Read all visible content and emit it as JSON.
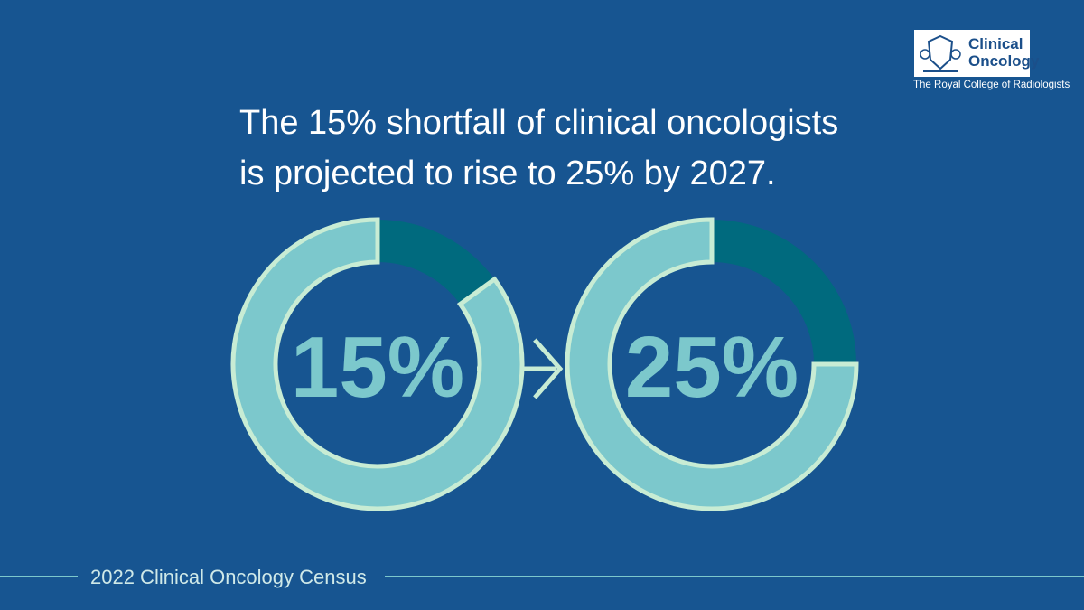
{
  "headline": [
    "The 15% shortfall of clinical oncologists",
    "is projected to rise to 25% by 2027."
  ],
  "logo": {
    "name": "Clinical Oncology",
    "organisation": "The Royal College of Radiologists"
  },
  "footer": "2022 Clinical Oncology Census",
  "chart_data": [
    {
      "type": "donut",
      "values": [
        15,
        85
      ],
      "value_labels": [
        "15%",
        null
      ],
      "colors": [
        "#006a7e",
        "#7cc8cc"
      ]
    },
    {
      "type": "donut",
      "values": [
        25,
        75
      ],
      "value_labels": [
        "25%",
        null
      ],
      "colors": [
        "#006a7e",
        "#7cc8cc"
      ]
    }
  ]
}
